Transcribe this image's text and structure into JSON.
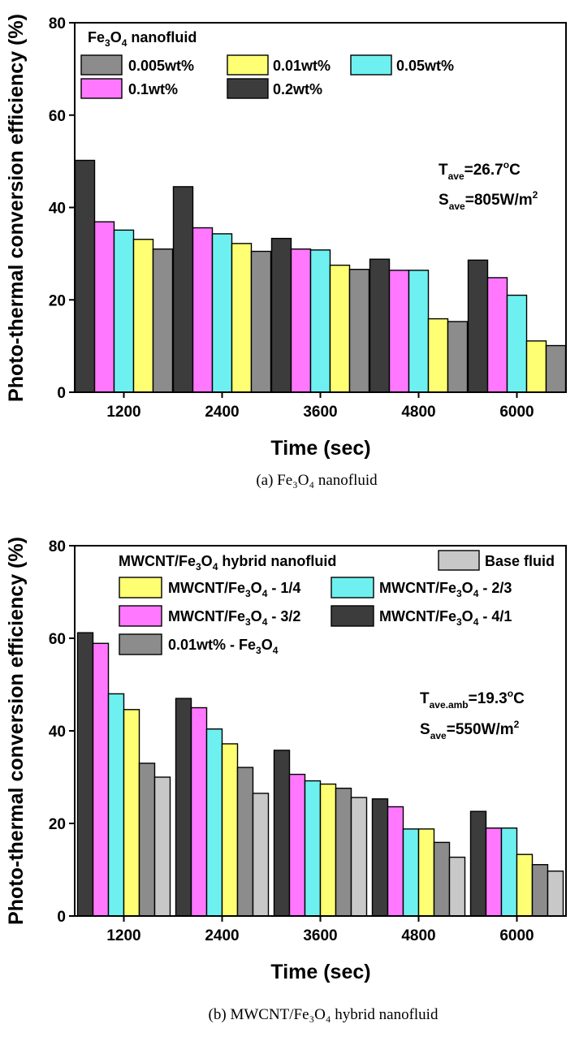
{
  "colors": {
    "0.005wt%": "#8c8c8c",
    "0.01wt%": "#ffff73",
    "0.05wt%": "#6ff0f0",
    "0.1wt%": "#ff78ff",
    "0.2wt%": "#3c3c3c",
    "MWCNT/Fe3O4 - 1/4": "#ffff73",
    "MWCNT/Fe3O4 - 2/3": "#6ff0f0",
    "MWCNT/Fe3O4 - 3/2": "#ff78ff",
    "MWCNT/Fe3O4 - 4/1": "#3c3c3c",
    "0.01wt% - Fe3O4": "#8c8c8c",
    "Base fluid": "#c8c8c8"
  },
  "chart_data": [
    {
      "type": "bar",
      "caption": "(a)  Fe₃O₄ nanofluid",
      "xlabel": "Time (sec)",
      "ylabel": "Photo-thermal conversion efficiency (%)",
      "ylim": [
        0,
        80
      ],
      "yticks": [
        "0",
        "20",
        "40",
        "60",
        "80"
      ],
      "categories": [
        "1200",
        "2400",
        "3600",
        "4800",
        "6000"
      ],
      "legend_title": {
        "main": "Fe",
        "s1": "3",
        "mid": "O",
        "s2": "4",
        "rest": " nanofluid"
      },
      "annotation": [
        {
          "main": "T",
          "sub": "ave",
          "rest": "=26.7",
          "sup": "o",
          "tail": "C"
        },
        {
          "main": "S",
          "sub": "ave",
          "rest": "=805W/m",
          "sup": "2",
          "tail": ""
        }
      ],
      "series": [
        {
          "name": "0.2wt%",
          "label": "0.2wt%",
          "values": [
            50.2,
            44.5,
            33.3,
            28.8,
            28.6
          ]
        },
        {
          "name": "0.1wt%",
          "label": "0.1wt%",
          "values": [
            36.9,
            35.6,
            31.0,
            26.4,
            24.8
          ]
        },
        {
          "name": "0.05wt%",
          "label": "0.05wt%",
          "values": [
            35.1,
            34.3,
            30.8,
            26.4,
            21.0
          ]
        },
        {
          "name": "0.01wt%",
          "label": "0.01wt%",
          "values": [
            33.1,
            32.2,
            27.5,
            15.9,
            11.1
          ]
        },
        {
          "name": "0.005wt%",
          "label": "0.005wt%",
          "values": [
            31.0,
            30.5,
            26.6,
            15.3,
            10.1
          ]
        }
      ],
      "legend_order": [
        "0.005wt%",
        "0.01wt%",
        "0.05wt%",
        "0.1wt%",
        "0.2wt%"
      ]
    },
    {
      "type": "bar",
      "caption": "(b)  MWCNT/Fe₃O₄ hybrid nanofluid",
      "xlabel": "Time (sec)",
      "ylabel": "Photo-thermal conversion efficiency (%)",
      "ylim": [
        0,
        80
      ],
      "yticks": [
        "0",
        "20",
        "40",
        "60",
        "80"
      ],
      "categories": [
        "1200",
        "2400",
        "3600",
        "4800",
        "6000"
      ],
      "legend_title": {
        "main": "MWCNT/Fe",
        "s1": "3",
        "mid": "O",
        "s2": "4",
        "rest": " hybrid nanofluid"
      },
      "annotation": [
        {
          "main": "T",
          "sub": "ave.amb",
          "rest": "=19.3",
          "sup": "o",
          "tail": "C"
        },
        {
          "main": "S",
          "sub": "ave",
          "rest": "=550W/m",
          "sup": "2",
          "tail": ""
        }
      ],
      "series": [
        {
          "name": "MWCNT/Fe3O4 - 4/1",
          "label": {
            "pre": "MWCNT/Fe",
            "s1": "3",
            "mid": "O",
            "s2": "4",
            "post": " - 4/1"
          },
          "values": [
            61.2,
            47.0,
            35.8,
            25.3,
            22.6
          ]
        },
        {
          "name": "MWCNT/Fe3O4 - 3/2",
          "label": {
            "pre": "MWCNT/Fe",
            "s1": "3",
            "mid": "O",
            "s2": "4",
            "post": " - 3/2"
          },
          "values": [
            58.9,
            45.0,
            30.6,
            23.6,
            19.0
          ]
        },
        {
          "name": "MWCNT/Fe3O4 - 2/3",
          "label": {
            "pre": "MWCNT/Fe",
            "s1": "3",
            "mid": "O",
            "s2": "4",
            "post": " - 2/3"
          },
          "values": [
            48.0,
            40.4,
            29.2,
            18.8,
            19.0
          ]
        },
        {
          "name": "MWCNT/Fe3O4 - 1/4",
          "label": {
            "pre": "MWCNT/Fe",
            "s1": "3",
            "mid": "O",
            "s2": "4",
            "post": " - 1/4"
          },
          "values": [
            44.6,
            37.2,
            28.5,
            18.8,
            13.3
          ]
        },
        {
          "name": "0.01wt% - Fe3O4",
          "label": {
            "pre": "0.01wt% - Fe",
            "s1": "3",
            "mid": "O",
            "s2": "4",
            "post": ""
          },
          "values": [
            33.0,
            32.1,
            27.6,
            15.9,
            11.1
          ]
        },
        {
          "name": "Base fluid",
          "label": {
            "pre": "Base fluid",
            "s1": "",
            "mid": "",
            "s2": "",
            "post": ""
          },
          "values": [
            30.0,
            26.5,
            25.6,
            12.7,
            9.7
          ]
        }
      ]
    }
  ]
}
